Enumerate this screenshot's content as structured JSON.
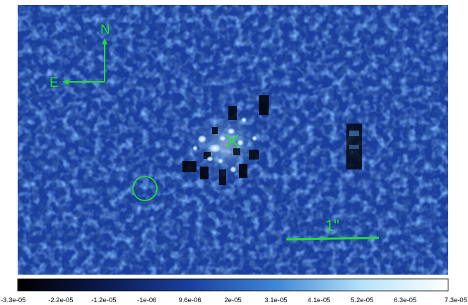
{
  "image": {
    "overlay_color": "#22dd33",
    "background_color": "#1a3f9e",
    "compass": {
      "north_label": "N",
      "east_label": "E"
    },
    "scale_bar": {
      "label": "1\""
    }
  },
  "colorbar": {
    "colors": [
      "#000000",
      "#0b1a4f",
      "#1a3f9e",
      "#3f86d6",
      "#b6e2fb",
      "#ffffff"
    ],
    "tick_labels": [
      "-3.3e-05",
      "-2.2e-05",
      "-1.2e-05",
      "-1e-06",
      "9.6e-06",
      "2e-05",
      "3.1e-05",
      "4.1e-05",
      "5.2e-05",
      "6.3e-05",
      "7.3e-05"
    ]
  }
}
